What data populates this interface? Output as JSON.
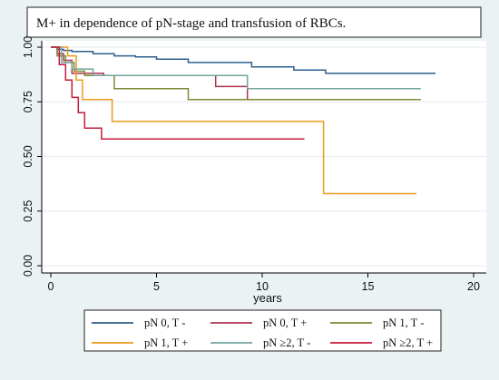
{
  "chart_data": {
    "type": "line",
    "title": "M+ in dependence of pN-stage and transfusion of RBCs.",
    "xlabel": "years",
    "ylabel": "",
    "xlim": [
      0,
      20
    ],
    "ylim": [
      0,
      1
    ],
    "x_ticks": [
      "0",
      "5",
      "10",
      "15",
      "20"
    ],
    "y_ticks": [
      "0.00",
      "0.25",
      "0.50",
      "0.75",
      "1.00"
    ],
    "grid": true,
    "legend_position": "bottom",
    "series": [
      {
        "name": "pN 0, T -",
        "color": "#2c5e8e",
        "x": [
          0,
          0.3,
          0.6,
          1.0,
          2.0,
          3.0,
          4.0,
          5.0,
          6.5,
          9.5,
          11.5,
          13.0,
          18.2
        ],
        "y": [
          1.0,
          0.99,
          0.985,
          0.98,
          0.97,
          0.96,
          0.955,
          0.945,
          0.93,
          0.91,
          0.895,
          0.88,
          0.88
        ]
      },
      {
        "name": "pN 0, T +",
        "color": "#b0324f",
        "x": [
          0,
          0.3,
          0.6,
          1.0,
          2.5,
          7.8,
          9.3,
          16.0
        ],
        "y": [
          1.0,
          0.97,
          0.94,
          0.88,
          0.87,
          0.82,
          0.76,
          0.76
        ]
      },
      {
        "name": "pN 1, T -",
        "color": "#7b8a36",
        "x": [
          0,
          0.3,
          0.7,
          1.1,
          1.6,
          3.0,
          6.5,
          17.5
        ],
        "y": [
          1.0,
          0.96,
          0.93,
          0.89,
          0.87,
          0.81,
          0.76,
          0.76
        ]
      },
      {
        "name": "pN 1, T +",
        "color": "#eb9a1c",
        "x": [
          0,
          0.8,
          1.2,
          1.5,
          2.9,
          12.9,
          17.3
        ],
        "y": [
          1.0,
          0.96,
          0.85,
          0.76,
          0.66,
          0.33,
          0.33
        ]
      },
      {
        "name": "pN ≥2, T -",
        "color": "#72a59e",
        "x": [
          0,
          0.5,
          1.0,
          2.0,
          9.3,
          17.5
        ],
        "y": [
          1.0,
          0.93,
          0.9,
          0.87,
          0.81,
          0.81
        ]
      },
      {
        "name": "pN ≥2, T +",
        "color": "#c41b3c",
        "x": [
          0,
          0.4,
          0.7,
          1.0,
          1.3,
          1.6,
          2.4,
          12.0
        ],
        "y": [
          1.0,
          0.92,
          0.85,
          0.77,
          0.7,
          0.63,
          0.58,
          0.58
        ]
      }
    ]
  }
}
